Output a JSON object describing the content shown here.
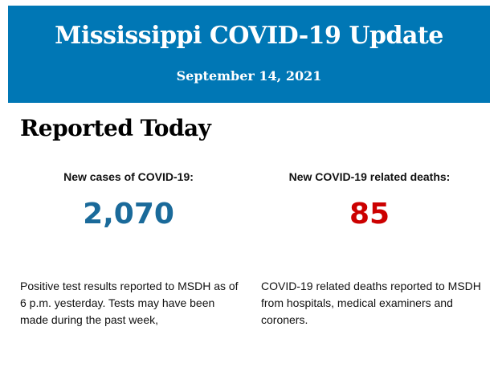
{
  "header": {
    "title": "Mississippi COVID-19 Update",
    "date": "September 14, 2021"
  },
  "section_title": "Reported Today",
  "stats": [
    {
      "label": "New cases of COVID-19:",
      "value": "2,070",
      "color": "#1a6a9a",
      "description": "Positive test results reported to MSDH as of 6 p.m. yesterday. Tests may have been made during the past week,"
    },
    {
      "label": "New COVID-19 related deaths:",
      "value": "85",
      "color": "#cc0000",
      "description": "COVID-19 related deaths reported to MSDH from hospitals, medical examiners and coroners."
    }
  ],
  "colors": {
    "banner": "#0077b5"
  }
}
